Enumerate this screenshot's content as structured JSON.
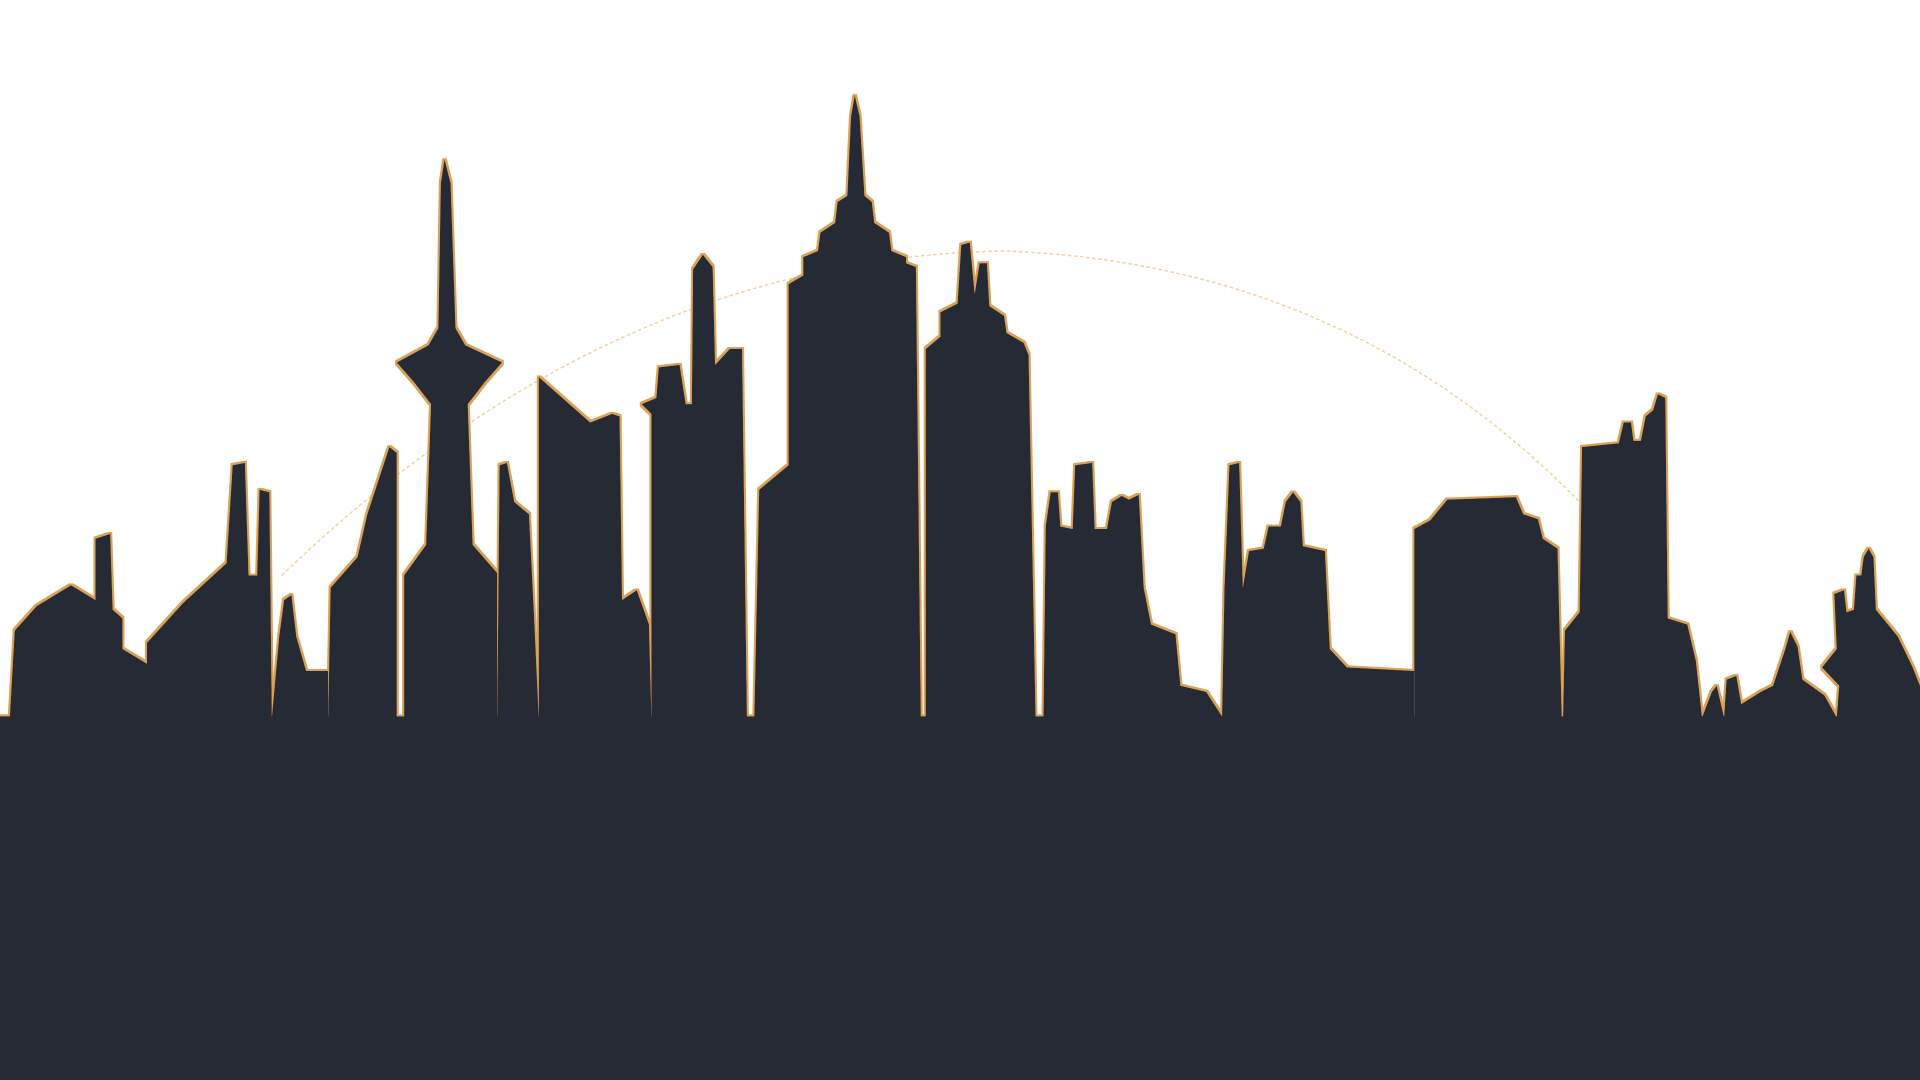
{
  "scene": {
    "subject": "city-skyline-silhouette",
    "background_color": "#ffffff",
    "silhouette_color": "#272b35",
    "accent_color": "#d9a25a",
    "arc_color": "#f2c58a"
  }
}
